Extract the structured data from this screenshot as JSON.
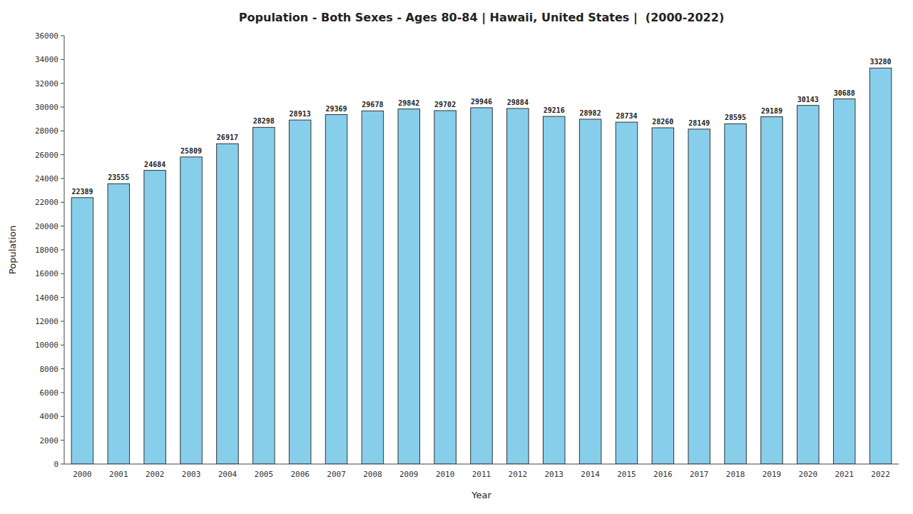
{
  "chart_data": {
    "type": "bar",
    "title": "Population - Both Sexes - Ages 80-84 | Hawaii, United States |  (2000-2022)",
    "xlabel": "Year",
    "ylabel": "Population",
    "categories": [
      "2000",
      "2001",
      "2002",
      "2003",
      "2004",
      "2005",
      "2006",
      "2007",
      "2008",
      "2009",
      "2010",
      "2011",
      "2012",
      "2013",
      "2014",
      "2015",
      "2016",
      "2017",
      "2018",
      "2019",
      "2020",
      "2021",
      "2022"
    ],
    "values": [
      22389,
      23555,
      24684,
      25809,
      26917,
      28298,
      28913,
      29369,
      29678,
      29842,
      29702,
      29946,
      29884,
      29216,
      28982,
      28734,
      28260,
      28149,
      28595,
      29189,
      30143,
      30688,
      33280
    ],
    "color": "#87CEEB",
    "ylim": [
      0,
      36000
    ],
    "yticks": [
      0,
      2000,
      4000,
      6000,
      8000,
      10000,
      12000,
      14000,
      16000,
      18000,
      20000,
      22000,
      24000,
      26000,
      28000,
      30000,
      32000,
      34000,
      36000
    ],
    "grid": false,
    "data_labels": true
  }
}
